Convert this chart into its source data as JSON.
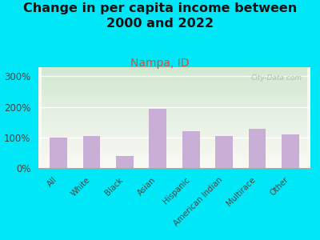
{
  "title": "Change in per capita income between\n2000 and 2022",
  "subtitle": "Nampa, ID",
  "categories": [
    "All",
    "White",
    "Black",
    "Asian",
    "Hispanic",
    "American Indian",
    "Multirace",
    "Other"
  ],
  "values": [
    100,
    105,
    40,
    195,
    120,
    105,
    128,
    110
  ],
  "bar_color": "#c9aed6",
  "background_outer": "#00e8f8",
  "background_inner_top_left": "#d4ead4",
  "background_inner_top_right": "#e8f5e8",
  "background_inner_bottom": "#f8f8f0",
  "title_fontsize": 11.5,
  "subtitle_fontsize": 10,
  "subtitle_color": "#cc5533",
  "title_color": "#111111",
  "ylabel_ticks": [
    "0%",
    "100%",
    "200%",
    "300%"
  ],
  "yticks": [
    0,
    100,
    200,
    300
  ],
  "ylim": [
    0,
    330
  ],
  "watermark": "City-Data.com"
}
